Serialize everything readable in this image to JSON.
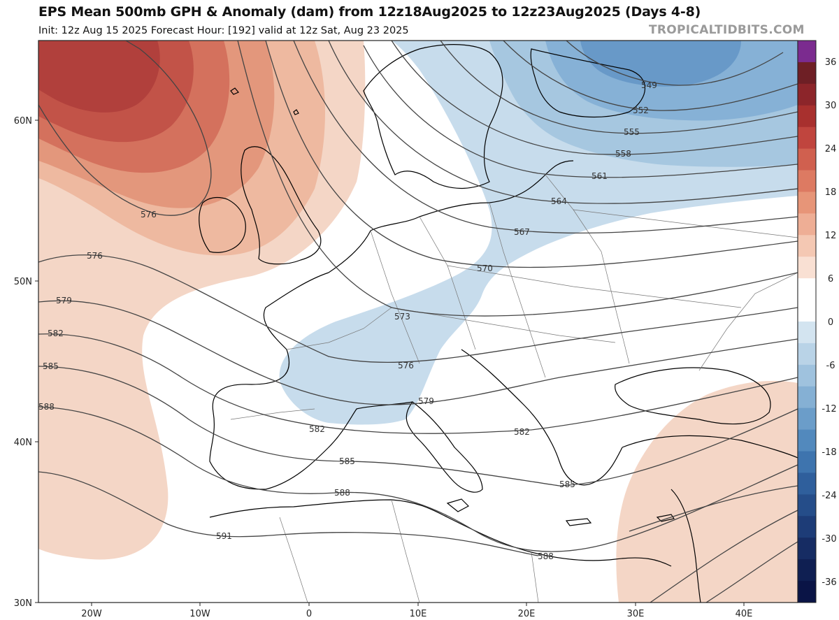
{
  "header": {
    "title": "EPS Mean 500mb GPH & Anomaly (dam) from 12z18Aug2025 to 12z23Aug2025 (Days 4-8)",
    "subtitle": "Init: 12z Aug 15 2025   Forecast Hour: [192]   valid at 12z Sat, Aug 23 2025",
    "credit": "TROPICALTIDBITS.COM"
  },
  "colors": {
    "warm1": "#f4d6c6",
    "warm2": "#eeb9a0",
    "warm3": "#e3977c",
    "warm4": "#d4715d",
    "warm5": "#c25348",
    "warm6": "#b1403c",
    "cool1": "#c7dcec",
    "cool2": "#a6c7e0",
    "cool3": "#86b1d6",
    "cool4": "#6899c8",
    "contour": "#444444",
    "coast": "#000000",
    "border": "#555555"
  },
  "map": {
    "lon_ticks": [
      "20W",
      "10W",
      "0",
      "10E",
      "20E",
      "30E",
      "40E"
    ],
    "lat_ticks": [
      "60N",
      "50N",
      "40N",
      "30N"
    ],
    "contours": [
      {
        "value": "549",
        "label": "549"
      },
      {
        "value": "552",
        "label": "552"
      },
      {
        "value": "555",
        "label": "555"
      },
      {
        "value": "558",
        "label": "558"
      },
      {
        "value": "561",
        "label": "561"
      },
      {
        "value": "564",
        "label": "564"
      },
      {
        "value": "567",
        "label": "567"
      },
      {
        "value": "570",
        "label": "570"
      },
      {
        "value": "573",
        "label": "573"
      },
      {
        "value": "576",
        "label": "576"
      },
      {
        "value": "576b",
        "label": "576"
      },
      {
        "value": "576c",
        "label": "576"
      },
      {
        "value": "579",
        "label": "579"
      },
      {
        "value": "579b",
        "label": "579"
      },
      {
        "value": "582",
        "label": "582"
      },
      {
        "value": "582b",
        "label": "582"
      },
      {
        "value": "582c",
        "label": "582"
      },
      {
        "value": "585",
        "label": "585"
      },
      {
        "value": "585b",
        "label": "585"
      },
      {
        "value": "585c",
        "label": "585"
      },
      {
        "value": "588",
        "label": "588"
      },
      {
        "value": "588b",
        "label": "588"
      },
      {
        "value": "588c",
        "label": "588"
      },
      {
        "value": "591",
        "label": "591"
      }
    ]
  },
  "colorbar": {
    "labels": [
      "36",
      "30",
      "24",
      "18",
      "12",
      "6",
      "0",
      "-6",
      "-12",
      "-18",
      "-24",
      "-30",
      "-36"
    ],
    "colors": [
      "#7b2b8f",
      "#6e1f25",
      "#8c252a",
      "#a8302e",
      "#c0453e",
      "#d0604f",
      "#dd7a62",
      "#e79578",
      "#eeae95",
      "#f4c8b3",
      "#f9e0d3",
      "#ffffff",
      "#ffffff",
      "#d3e4f0",
      "#b9d3e7",
      "#9fc2de",
      "#85b0d4",
      "#6b9dc9",
      "#5289bd",
      "#3e74ae",
      "#2f5f9c",
      "#254d89",
      "#1d3c77",
      "#162c63",
      "#0f1f52",
      "#0a1446"
    ]
  }
}
